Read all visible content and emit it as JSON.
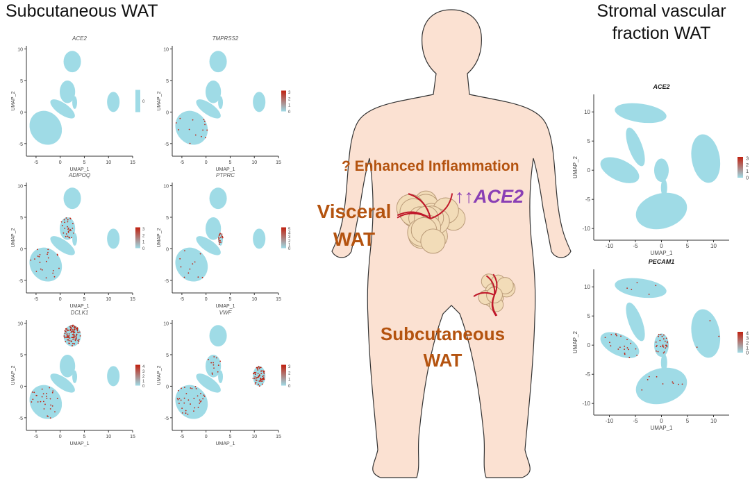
{
  "headers": {
    "left": "Subcutaneous WAT",
    "right_line1": "Stromal vascular",
    "right_line2": "fraction WAT"
  },
  "annotations": {
    "inflammation": "? Enhanced Inflammation",
    "visceral_line1": "Visceral",
    "visceral_line2": "WAT",
    "arrows": "↑↑",
    "ace2": "ACE2",
    "subq_line1": "Subcutaneous",
    "subq_line2": "WAT"
  },
  "colors": {
    "low": "#9fdbe6",
    "high": "#c0200f",
    "body": "#fbe1d2",
    "annotation": "#b4530f",
    "ace2": "#8a3fb5"
  },
  "chart_data": [
    {
      "type": "scatter",
      "group": "subcutaneous",
      "title": "ACE2",
      "xlabel": "UMAP_1",
      "ylabel": "UMAP_2",
      "xticks": [
        -5,
        0,
        5,
        10,
        15
      ],
      "yticks": [
        -5,
        0,
        5,
        10
      ],
      "xlim": [
        -7,
        15
      ],
      "ylim": [
        -7,
        10.5
      ],
      "legend": [
        "0"
      ],
      "expression": {}
    },
    {
      "type": "scatter",
      "group": "subcutaneous",
      "title": "TMPRSS2",
      "xlabel": "UMAP_1",
      "ylabel": "UMAP_2",
      "xticks": [
        -5,
        0,
        5,
        10,
        15
      ],
      "yticks": [
        -5,
        0,
        5,
        10
      ],
      "xlim": [
        -7,
        15
      ],
      "ylim": [
        -7,
        10.5
      ],
      "legend": [
        "3",
        "2",
        "1",
        "0"
      ],
      "expression": {
        "main": 0.04
      }
    },
    {
      "type": "scatter",
      "group": "subcutaneous",
      "title": "ADIPOQ",
      "xlabel": "UMAP_1",
      "ylabel": "UMAP_2",
      "xticks": [
        -5,
        0,
        5,
        10,
        15
      ],
      "yticks": [
        -5,
        0,
        5,
        10
      ],
      "xlim": [
        -7,
        15
      ],
      "ylim": [
        -7,
        10.5
      ],
      "legend": [
        "3",
        "2",
        "1",
        "0"
      ],
      "expression": {
        "main": 0.06,
        "mid": 0.25
      }
    },
    {
      "type": "scatter",
      "group": "subcutaneous",
      "title": "PTPRC",
      "xlabel": "UMAP_1",
      "ylabel": "UMAP_2",
      "xticks": [
        -5,
        0,
        5,
        10,
        15
      ],
      "yticks": [
        -5,
        0,
        5,
        10
      ],
      "xlim": [
        -7,
        15
      ],
      "ylim": [
        -7,
        10.5
      ],
      "legend": [
        "5",
        "4",
        "3",
        "2",
        "1",
        "0"
      ],
      "expression": {
        "main": 0.03,
        "spot": 0.9
      }
    },
    {
      "type": "scatter",
      "group": "subcutaneous",
      "title": "DCLK1",
      "xlabel": "UMAP_1",
      "ylabel": "UMAP_2",
      "xticks": [
        -5,
        0,
        5,
        10,
        15
      ],
      "yticks": [
        -5,
        0,
        5,
        10
      ],
      "xlim": [
        -7,
        15
      ],
      "ylim": [
        -7,
        10.5
      ],
      "legend": [
        "4",
        "3",
        "2",
        "1",
        "0"
      ],
      "expression": {
        "main": 0.08,
        "top": 0.85
      }
    },
    {
      "type": "scatter",
      "group": "subcutaneous",
      "title": "VWF",
      "xlabel": "UMAP_1",
      "ylabel": "UMAP_2",
      "xticks": [
        -5,
        0,
        5,
        10,
        15
      ],
      "yticks": [
        -5,
        0,
        5,
        10
      ],
      "xlim": [
        -7,
        15
      ],
      "ylim": [
        -7,
        10.5
      ],
      "legend": [
        "3",
        "2",
        "1",
        "0"
      ],
      "expression": {
        "main": 0.1,
        "mid": 0.1,
        "right": 0.75
      }
    },
    {
      "type": "scatter",
      "group": "svf",
      "title": "ACE2",
      "xlabel": "UMAP_1",
      "ylabel": "UMAP_2",
      "xticks": [
        -10,
        -5,
        0,
        5,
        10
      ],
      "yticks": [
        -10,
        -5,
        0,
        5,
        10
      ],
      "xlim": [
        -13,
        13
      ],
      "ylim": [
        -12,
        13
      ],
      "legend": [
        "3",
        "2",
        "1",
        "0"
      ],
      "expression": {
        "center": 0.02
      }
    },
    {
      "type": "scatter",
      "group": "svf",
      "title": "PECAM1",
      "xlabel": "UMAP_1",
      "ylabel": "UMAP_2",
      "xticks": [
        -10,
        -5,
        0,
        5,
        10
      ],
      "yticks": [
        -10,
        -5,
        0,
        5,
        10
      ],
      "xlim": [
        -13,
        13
      ],
      "ylim": [
        -12,
        13
      ],
      "legend": [
        "4",
        "3",
        "2",
        "1",
        "0"
      ],
      "expression": {
        "left": 0.25,
        "center": 0.8,
        "bottom": 0.05,
        "top": 0.05,
        "right": 0.02
      }
    }
  ]
}
